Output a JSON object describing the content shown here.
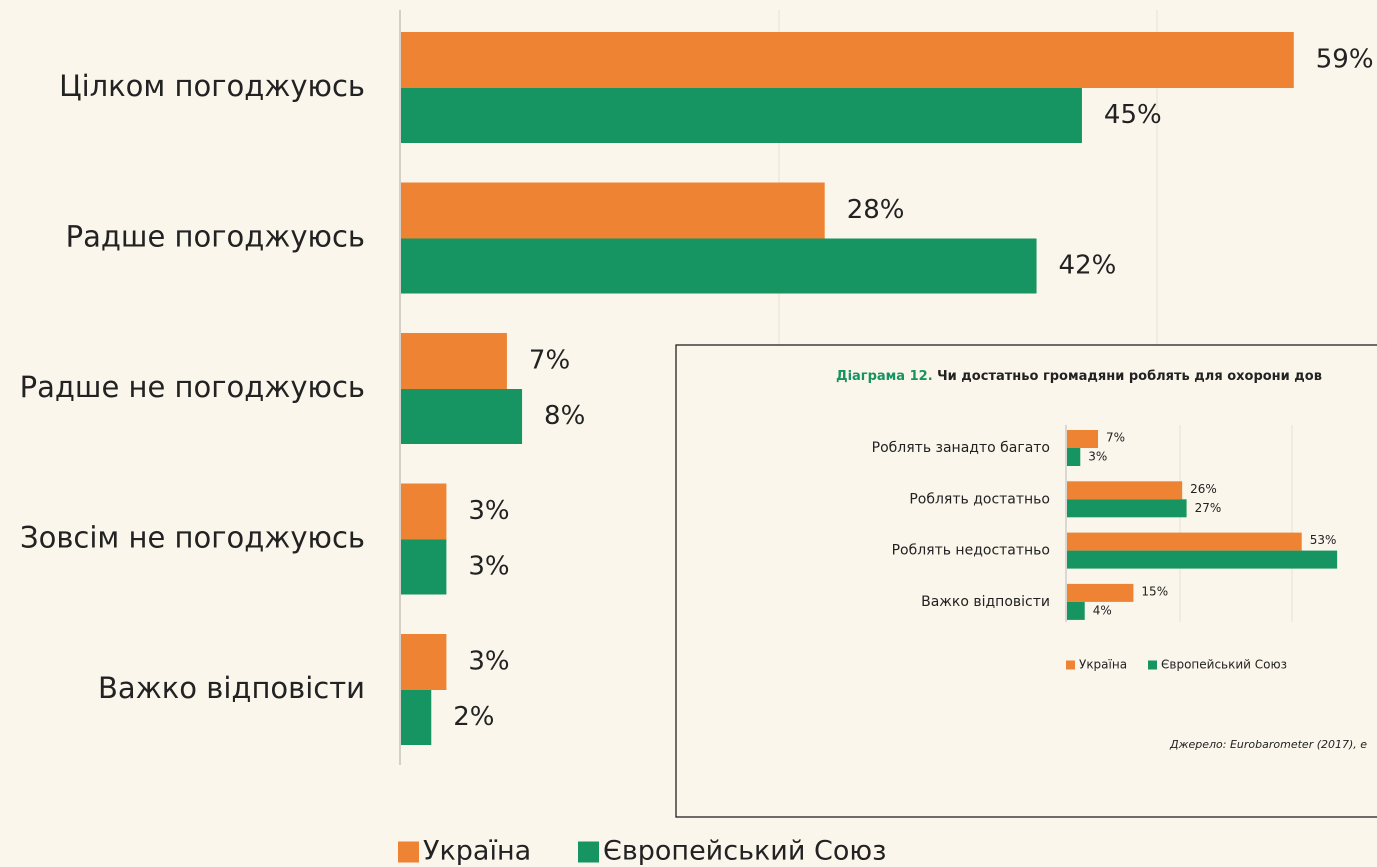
{
  "chart_data": [
    {
      "type": "hbar",
      "categories": [
        "Цілком погоджуюсь",
        "Радше погоджуюсь",
        "Радше не погоджуюсь",
        "Зовсім не погоджуюсь",
        "Важко відповісти"
      ],
      "series": [
        {
          "name": "Україна",
          "color": "#ee8333",
          "values": [
            59,
            28,
            7,
            3,
            3
          ],
          "value_labels": [
            "59%",
            "28%",
            "7%",
            "3%",
            "3%"
          ]
        },
        {
          "name": "Європейський Союз",
          "color": "#169462",
          "values": [
            45,
            42,
            8,
            3,
            2
          ],
          "value_labels": [
            "45%",
            "42%",
            "8%",
            "3%",
            "2%"
          ]
        }
      ],
      "xlim": [
        0,
        64.5
      ]
    },
    {
      "type": "hbar",
      "title_prefix": "Діаграма 12.",
      "title": "Чи достатньо громадяни роблять для охорони дов",
      "categories": [
        "Роблять занадто багато",
        "Роблять достатньо",
        "Роблять недостатньо",
        "Важко відповісти"
      ],
      "series": [
        {
          "name": "Україна",
          "color": "#ee8333",
          "values": [
            7,
            26,
            53,
            15
          ],
          "value_labels": [
            "7%",
            "26%",
            "53%",
            "15%"
          ]
        },
        {
          "name": "Європейський Союз",
          "color": "#169462",
          "values": [
            3,
            27,
            61,
            4
          ],
          "value_labels": [
            "3%",
            "27%",
            null,
            "4%"
          ]
        }
      ],
      "xlim": [
        0,
        70
      ],
      "source": "Джерело: Eurobarometer (2017), е"
    }
  ]
}
